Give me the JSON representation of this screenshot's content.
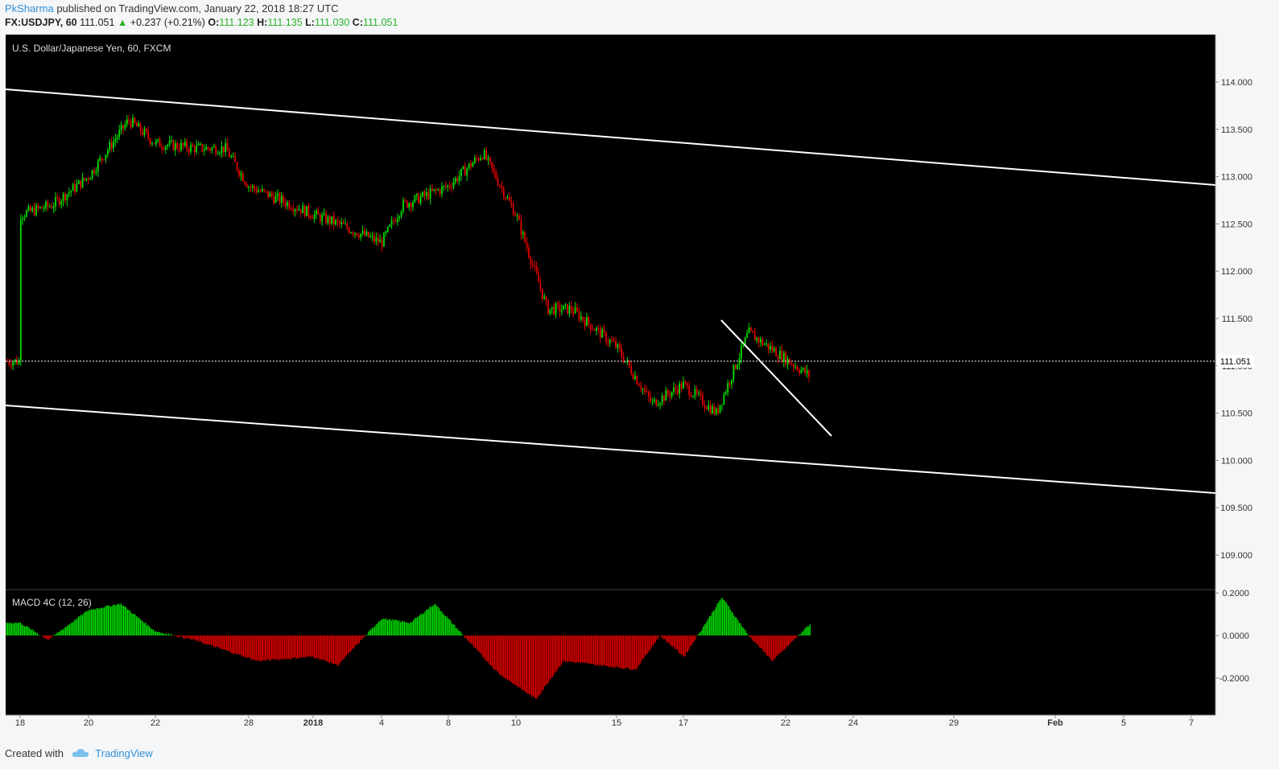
{
  "header": {
    "author": "PkSharma",
    "published_text": "published on TradingView.com, January 22, 2018 18:27 UTC",
    "symbol": "FX:USDJPY, 60",
    "last": "111.051",
    "change_arrow": "▲",
    "change": "+0.237 (+0.21%)",
    "o_label": "O:",
    "o_value": "111.123",
    "h_label": "H:",
    "h_value": "111.135",
    "l_label": "L:",
    "l_value": "111.030",
    "c_label": "C:",
    "c_value": "111.051"
  },
  "footer": {
    "created_with": "Created with",
    "brand": "TradingView",
    "logo_icon": "tradingview-cloud-icon"
  },
  "colors": {
    "background": "#000000",
    "up": "#00e000",
    "down": "#e00000",
    "trendline": "#ffffff",
    "price_marker_bg": "#ffffff"
  },
  "chart_data": [
    {
      "type": "candlestick",
      "title": "U.S. Dollar/Japanese Yen, 60, FXCM",
      "price_marker": "111.051",
      "ylim": [
        108.6,
        114.5
      ],
      "y_ticks": [
        "114.000",
        "113.500",
        "113.000",
        "112.500",
        "112.000",
        "111.500",
        "111.000",
        "110.500",
        "110.000",
        "109.500",
        "109.000"
      ],
      "x_ticks": [
        "18",
        "20",
        "22",
        "28",
        "2018",
        "4",
        "8",
        "10",
        "15",
        "17",
        "22",
        "24",
        "29",
        "Feb",
        "5",
        "7"
      ],
      "approx_path": [
        [
          "18",
          112.6
        ],
        [
          "19",
          112.7
        ],
        [
          "20",
          113.0
        ],
        [
          "21",
          113.6
        ],
        [
          "22",
          113.35
        ],
        [
          "26",
          113.3
        ],
        [
          "27",
          113.3
        ],
        [
          "28",
          112.9
        ],
        [
          "29",
          112.6
        ],
        [
          "2018",
          112.5
        ],
        [
          "3",
          112.3
        ],
        [
          "4",
          112.7
        ],
        [
          "5",
          112.9
        ],
        [
          "8",
          113.25
        ],
        [
          "9",
          112.6
        ],
        [
          "10",
          111.6
        ],
        [
          "11",
          111.6
        ],
        [
          "12",
          111.2
        ],
        [
          "15",
          110.6
        ],
        [
          "16",
          110.8
        ],
        [
          "17",
          110.5
        ],
        [
          "18",
          111.35
        ],
        [
          "19",
          110.9
        ],
        [
          "22",
          111.05
        ]
      ],
      "trendlines": [
        {
          "from": [
            "17 Dec",
            113.93
          ],
          "to": [
            "7 Feb",
            112.93
          ]
        },
        {
          "from": [
            "17 Dec",
            110.6
          ],
          "to": [
            "7 Feb",
            109.66
          ]
        },
        {
          "from": [
            "18 Jan",
            111.48
          ],
          "to": [
            "23 Jan",
            110.25
          ]
        }
      ]
    },
    {
      "type": "bar",
      "title": "MACD 4C (12, 26)",
      "ylim": [
        -0.28,
        0.22
      ],
      "y_ticks": [
        "0.2000",
        "0.0000",
        "-0.2000"
      ],
      "approx_values": [
        [
          "18",
          0.06
        ],
        [
          "19",
          -0.02
        ],
        [
          "20",
          0.12
        ],
        [
          "21",
          0.15
        ],
        [
          "22",
          0.02
        ],
        [
          "27",
          -0.02
        ],
        [
          "28",
          -0.12
        ],
        [
          "2018",
          -0.1
        ],
        [
          "3",
          -0.14
        ],
        [
          "4",
          0.08
        ],
        [
          "5",
          0.06
        ],
        [
          "8",
          0.15
        ],
        [
          "9",
          -0.06
        ],
        [
          "10",
          -0.18
        ],
        [
          "11",
          -0.3
        ],
        [
          "12",
          -0.12
        ],
        [
          "15",
          -0.16
        ],
        [
          "16",
          0.0
        ],
        [
          "17",
          -0.1
        ],
        [
          "18",
          0.18
        ],
        [
          "19",
          0.0
        ],
        [
          "22",
          -0.12
        ],
        [
          "22b",
          0.06
        ]
      ]
    }
  ]
}
